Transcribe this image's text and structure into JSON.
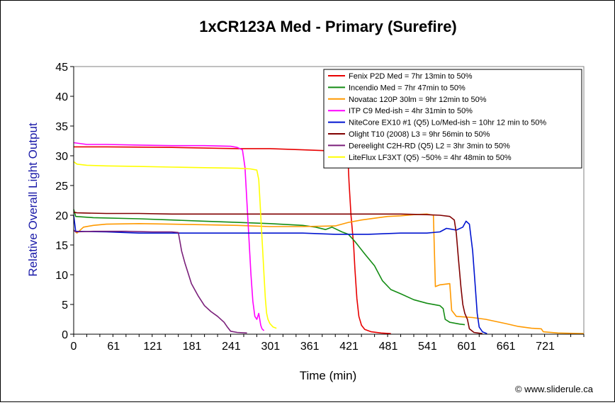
{
  "chart_data": {
    "type": "line",
    "title": "1xCR123A Med - Primary (Surefire)",
    "xlabel": "Time (min)",
    "ylabel": "Relative Overall Light Output",
    "xlim": [
      0,
      780
    ],
    "ylim": [
      0,
      45
    ],
    "xticks": [
      0,
      61,
      121,
      181,
      241,
      301,
      361,
      421,
      481,
      541,
      601,
      661,
      721
    ],
    "yticks": [
      0,
      5,
      10,
      15,
      20,
      25,
      30,
      35,
      40,
      45
    ],
    "grid": false,
    "legend_position": "top-right",
    "copyright": "© www.sliderule.ca",
    "series": [
      {
        "name": "Fenix P2D Med = 7hr 13min to 50%",
        "color": "#e80000",
        "points": [
          [
            0,
            31.5
          ],
          [
            50,
            31.5
          ],
          [
            150,
            31.4
          ],
          [
            250,
            31.2
          ],
          [
            300,
            31.2
          ],
          [
            350,
            31.0
          ],
          [
            400,
            30.8
          ],
          [
            415,
            30.5
          ],
          [
            420,
            28
          ],
          [
            421,
            25.6
          ],
          [
            424,
            20
          ],
          [
            428,
            15
          ],
          [
            430,
            11
          ],
          [
            433,
            6
          ],
          [
            436,
            3
          ],
          [
            440,
            1.5
          ],
          [
            445,
            0.8
          ],
          [
            455,
            0.4
          ],
          [
            470,
            0.2
          ],
          [
            485,
            0.1
          ]
        ]
      },
      {
        "name": "Incendio Med = 7hr 47min to 50%",
        "color": "#148c14",
        "points": [
          [
            0,
            21
          ],
          [
            3,
            19.8
          ],
          [
            30,
            19.6
          ],
          [
            100,
            19.4
          ],
          [
            150,
            19.2
          ],
          [
            200,
            19.0
          ],
          [
            250,
            18.8
          ],
          [
            300,
            18.6
          ],
          [
            350,
            18.3
          ],
          [
            370,
            18.0
          ],
          [
            385,
            17.6
          ],
          [
            395,
            18.0
          ],
          [
            410,
            17.2
          ],
          [
            420,
            16.8
          ],
          [
            430,
            15.6
          ],
          [
            445,
            13.5
          ],
          [
            460,
            11.5
          ],
          [
            472,
            9.0
          ],
          [
            485,
            7.5
          ],
          [
            500,
            6.8
          ],
          [
            520,
            5.8
          ],
          [
            540,
            5.2
          ],
          [
            560,
            4.8
          ],
          [
            565,
            4.3
          ],
          [
            568,
            2.5
          ],
          [
            575,
            2.0
          ],
          [
            590,
            1.7
          ],
          [
            598,
            1.6
          ]
        ]
      },
      {
        "name": "Novatac 120P 30lm = 9hr 12min to 50%",
        "color": "#ff9900",
        "points": [
          [
            0,
            17.5
          ],
          [
            5,
            17.0
          ],
          [
            15,
            18.0
          ],
          [
            30,
            18.3
          ],
          [
            50,
            18.5
          ],
          [
            100,
            18.6
          ],
          [
            150,
            18.5
          ],
          [
            200,
            18.4
          ],
          [
            250,
            18.3
          ],
          [
            300,
            18.1
          ],
          [
            350,
            18.1
          ],
          [
            400,
            18.2
          ],
          [
            420,
            18.8
          ],
          [
            440,
            19.2
          ],
          [
            460,
            19.5
          ],
          [
            480,
            19.8
          ],
          [
            500,
            19.9
          ],
          [
            520,
            20.1
          ],
          [
            540,
            20.2
          ],
          [
            550,
            20.0
          ],
          [
            553,
            8.0
          ],
          [
            560,
            8.3
          ],
          [
            575,
            8.5
          ],
          [
            578,
            4.0
          ],
          [
            585,
            3.0
          ],
          [
            610,
            2.8
          ],
          [
            630,
            2.5
          ],
          [
            660,
            1.8
          ],
          [
            680,
            1.3
          ],
          [
            700,
            1.0
          ],
          [
            715,
            0.9
          ],
          [
            718,
            0.4
          ],
          [
            740,
            0.2
          ],
          [
            780,
            0.1
          ]
        ]
      },
      {
        "name": "ITP C9 Med-ish = 4hr 31min to 50%",
        "color": "#ff00ff",
        "points": [
          [
            0,
            32.2
          ],
          [
            20,
            31.9
          ],
          [
            50,
            31.9
          ],
          [
            100,
            31.8
          ],
          [
            150,
            31.7
          ],
          [
            200,
            31.7
          ],
          [
            240,
            31.6
          ],
          [
            250,
            31.4
          ],
          [
            258,
            31.0
          ],
          [
            262,
            28
          ],
          [
            265,
            22
          ],
          [
            268,
            16
          ],
          [
            271,
            10
          ],
          [
            274,
            5.5
          ],
          [
            277,
            3.0
          ],
          [
            280,
            2.5
          ],
          [
            283,
            3.5
          ],
          [
            286,
            1.5
          ],
          [
            288,
            0.9
          ],
          [
            291,
            0.6
          ]
        ]
      },
      {
        "name": "NiteCore EX10 #1 (Q5) Lo/Med-ish = 10hr 12 min to 50%",
        "color": "#0014d0",
        "points": [
          [
            0,
            20
          ],
          [
            3,
            17.3
          ],
          [
            50,
            17.2
          ],
          [
            100,
            17.0
          ],
          [
            150,
            17.0
          ],
          [
            200,
            17.0
          ],
          [
            250,
            17.0
          ],
          [
            300,
            17.0
          ],
          [
            350,
            17.0
          ],
          [
            400,
            16.8
          ],
          [
            450,
            16.8
          ],
          [
            500,
            17.0
          ],
          [
            540,
            17.0
          ],
          [
            560,
            17.2
          ],
          [
            570,
            17.8
          ],
          [
            585,
            17.5
          ],
          [
            595,
            18.0
          ],
          [
            600,
            19.0
          ],
          [
            605,
            18.5
          ],
          [
            610,
            14
          ],
          [
            614,
            8
          ],
          [
            617,
            3.5
          ],
          [
            620,
            1.2
          ],
          [
            625,
            0.4
          ],
          [
            632,
            0.1
          ]
        ]
      },
      {
        "name": "Olight T10 (2008) L3 = 9hr 56min to 50%",
        "color": "#800000",
        "points": [
          [
            0,
            20.5
          ],
          [
            5,
            20.4
          ],
          [
            50,
            20.3
          ],
          [
            100,
            20.3
          ],
          [
            150,
            20.2
          ],
          [
            200,
            20.2
          ],
          [
            250,
            20.2
          ],
          [
            300,
            20.2
          ],
          [
            350,
            20.2
          ],
          [
            400,
            20.2
          ],
          [
            450,
            20.2
          ],
          [
            500,
            20.2
          ],
          [
            540,
            20.1
          ],
          [
            560,
            20.0
          ],
          [
            575,
            19.8
          ],
          [
            582,
            19.2
          ],
          [
            585,
            17
          ],
          [
            588,
            13
          ],
          [
            592,
            8
          ],
          [
            595,
            5.0
          ],
          [
            598,
            3.5
          ],
          [
            602,
            2.5
          ],
          [
            605,
            0.9
          ],
          [
            612,
            0.3
          ],
          [
            625,
            0.1
          ]
        ]
      },
      {
        "name": "Dereelight C2H-RD (Q5) L2 = 3hr 3min to 50%",
        "color": "#7a1f7a",
        "points": [
          [
            0,
            17.5
          ],
          [
            3,
            17.2
          ],
          [
            30,
            17.3
          ],
          [
            80,
            17.3
          ],
          [
            120,
            17.2
          ],
          [
            150,
            17.2
          ],
          [
            160,
            17.1
          ],
          [
            165,
            14
          ],
          [
            170,
            12
          ],
          [
            180,
            8.5
          ],
          [
            190,
            6.5
          ],
          [
            200,
            4.8
          ],
          [
            210,
            3.8
          ],
          [
            220,
            3.0
          ],
          [
            230,
            2.0
          ],
          [
            235,
            1.2
          ],
          [
            240,
            0.5
          ],
          [
            250,
            0.3
          ],
          [
            265,
            0.2
          ]
        ]
      },
      {
        "name": "LiteFlux LF3XT (Q5) ~50% = 4hr 48min to 50%",
        "color": "#ffff00",
        "points": [
          [
            0,
            29
          ],
          [
            5,
            28.6
          ],
          [
            20,
            28.4
          ],
          [
            50,
            28.3
          ],
          [
            100,
            28.2
          ],
          [
            150,
            28.1
          ],
          [
            200,
            28.0
          ],
          [
            250,
            27.9
          ],
          [
            270,
            27.8
          ],
          [
            280,
            27.6
          ],
          [
            283,
            26
          ],
          [
            285,
            22
          ],
          [
            287,
            18
          ],
          [
            289,
            14
          ],
          [
            291,
            10
          ],
          [
            293,
            6
          ],
          [
            295,
            3.5
          ],
          [
            297,
            2.5
          ],
          [
            300,
            1.8
          ],
          [
            305,
            1.2
          ],
          [
            310,
            1.0
          ]
        ]
      }
    ]
  }
}
